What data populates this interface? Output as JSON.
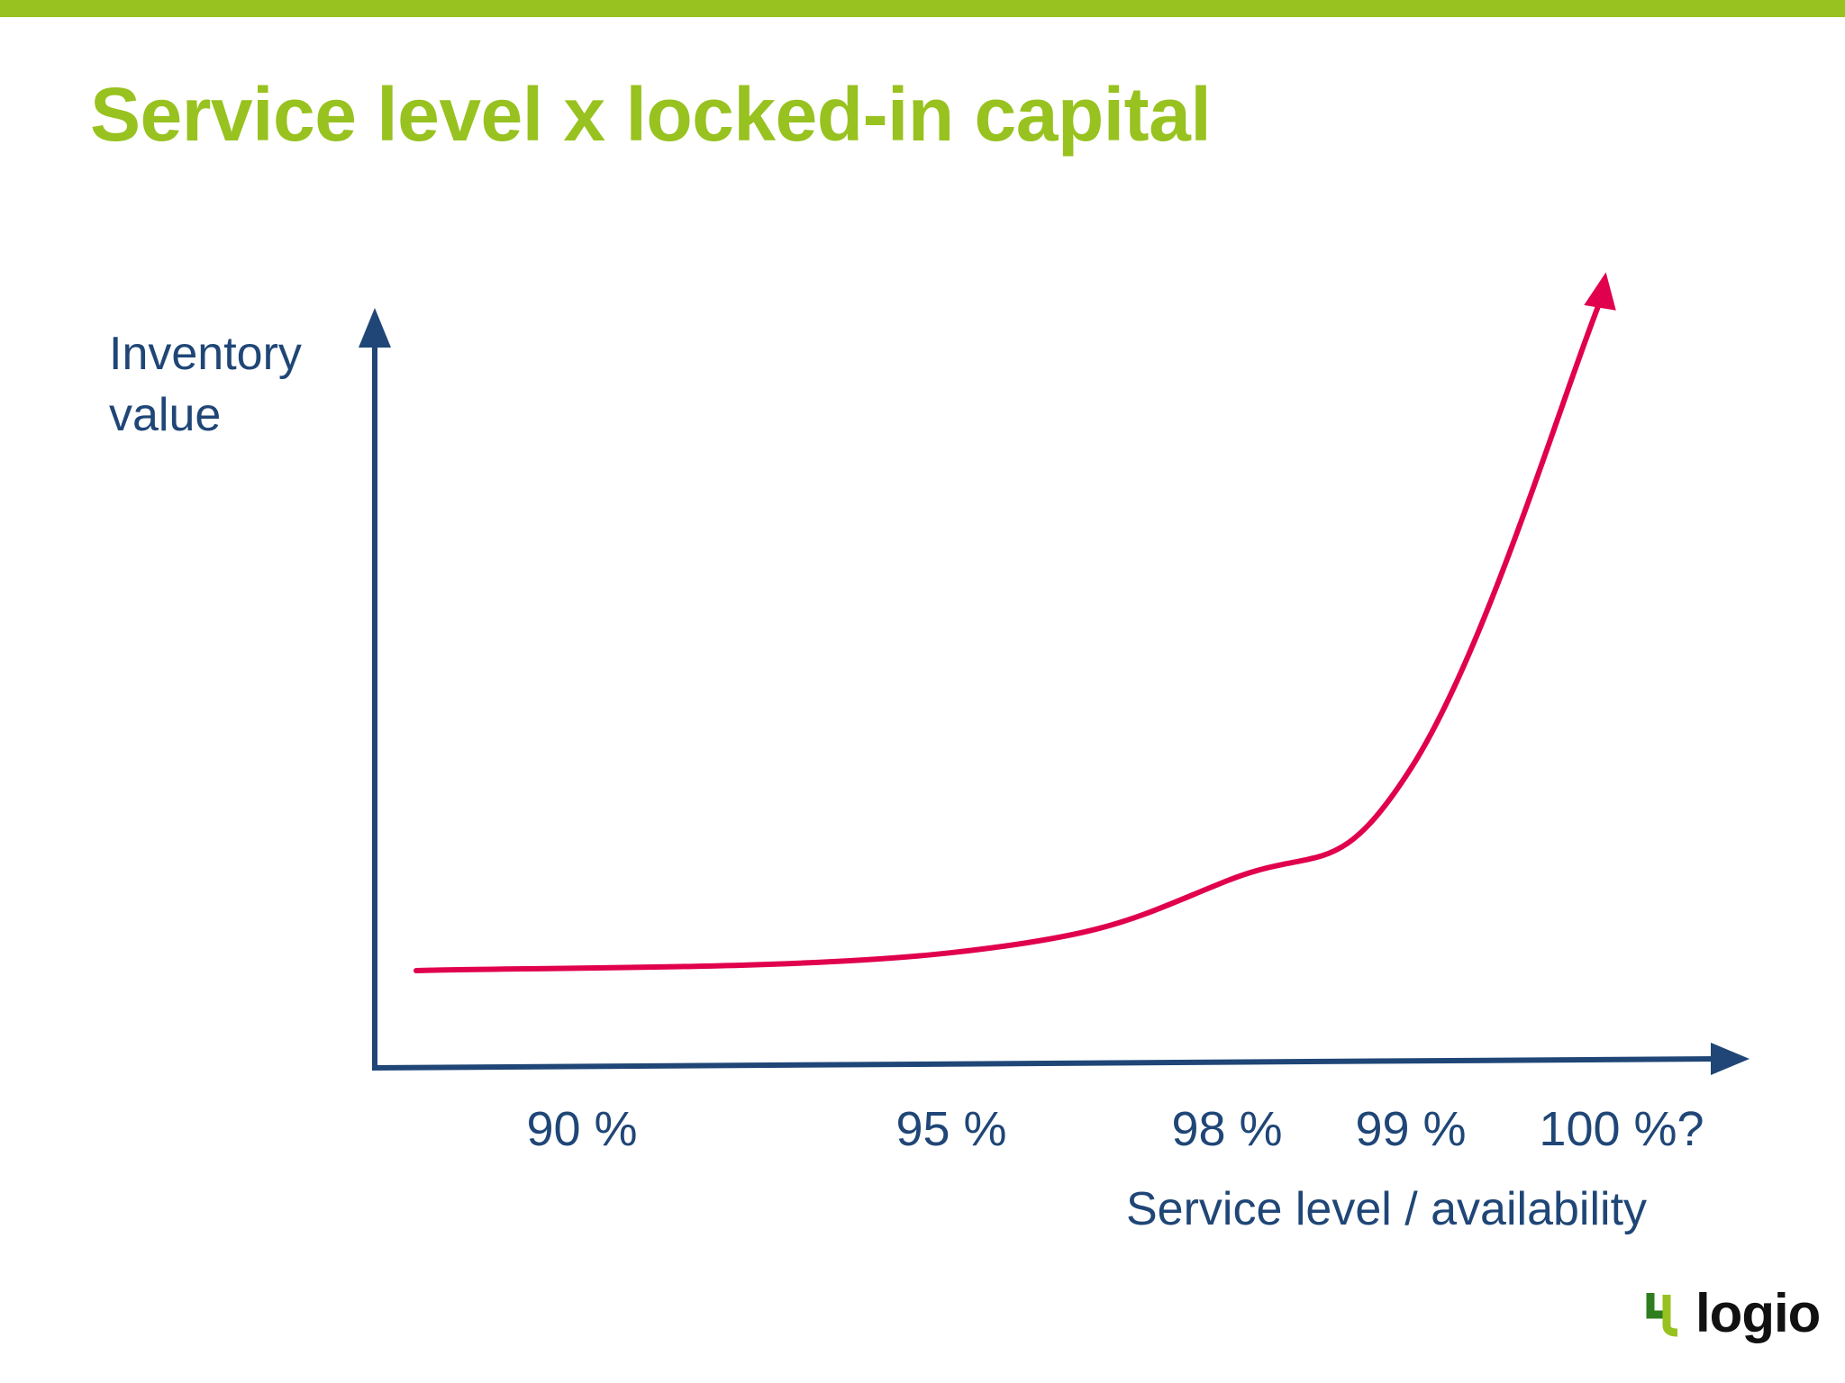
{
  "slide": {
    "title": "Service level x locked-in capital",
    "colors": {
      "accent_green": "#98C21F",
      "axis_blue": "#1F4676",
      "curve_red": "#E0004D",
      "text_blue": "#1F4676"
    }
  },
  "chart_data": {
    "type": "line",
    "title": "",
    "ylabel_lines": [
      "Inventory",
      "value"
    ],
    "xlabel": "Service level / availability",
    "categories": [
      "90 %",
      "95 %",
      "98 %",
      "99 %",
      "100 %?"
    ],
    "series": [
      {
        "values": [
          1.0,
          1.4,
          3.0,
          5.5,
          16.0
        ]
      }
    ],
    "yaxis_ticks": false,
    "grid": false,
    "legend": "none",
    "icons": [
      "axis-arrow-up",
      "axis-arrow-right",
      "curve-arrowhead"
    ]
  },
  "logo": {
    "text": "logio",
    "mark_icon": "logio-4-mark-icon"
  }
}
